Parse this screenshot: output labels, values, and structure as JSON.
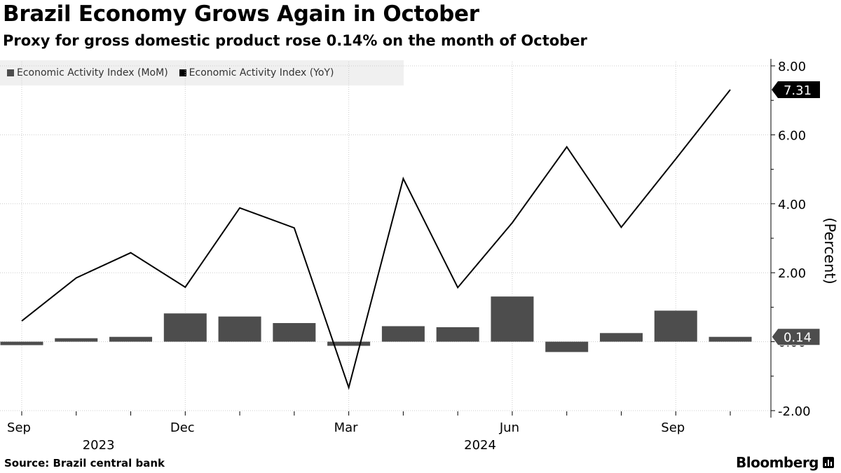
{
  "header": {
    "title": "Brazil Economy Grows Again in October",
    "subtitle": "Proxy for gross domestic product rose 0.14% on the month of October"
  },
  "legend": {
    "mom_label": "Economic Activity Index (MoM)",
    "yoy_label": "Economic Activity Index (YoY)"
  },
  "footer": {
    "source": "Source:  Brazil central bank",
    "brand": "Bloomberg"
  },
  "colors": {
    "bar": "#4d4d4d",
    "line": "#000000",
    "grid": "#cccccc"
  },
  "chart_data": {
    "type": "bar+line",
    "categories": [
      "Sep 2023",
      "Oct 2023",
      "Nov 2023",
      "Dec 2023",
      "Jan 2024",
      "Feb 2024",
      "Mar 2024",
      "Apr 2024",
      "May 2024",
      "Jun 2024",
      "Jul 2024",
      "Aug 2024",
      "Sep 2024",
      "Oct 2024"
    ],
    "series": [
      {
        "name": "Economic Activity Index (MoM)",
        "type": "bar",
        "values": [
          -0.1,
          0.1,
          0.14,
          0.82,
          0.73,
          0.54,
          -0.12,
          0.45,
          0.42,
          1.31,
          -0.3,
          0.25,
          0.9,
          0.14
        ]
      },
      {
        "name": "Economic Activity Index (YoY)",
        "type": "line",
        "values": [
          0.6,
          1.85,
          2.58,
          1.58,
          3.88,
          3.3,
          -1.33,
          4.73,
          1.57,
          3.45,
          5.65,
          3.32,
          5.3,
          7.31
        ]
      }
    ],
    "ylim": [
      -2,
      8
    ],
    "yticks": [
      -2,
      0,
      2,
      4,
      6,
      8
    ],
    "ytick_labels": [
      "-2.00",
      "0.00",
      "2.00",
      "4.00",
      "6.00",
      "8.00"
    ],
    "ylabel": "(Percent)",
    "xticks": [
      {
        "index": 0,
        "label": "Sep"
      },
      {
        "index": 3,
        "label": "Dec"
      },
      {
        "index": 6,
        "label": "Mar"
      },
      {
        "index": 9,
        "label": "Jun"
      },
      {
        "index": 12,
        "label": "Sep"
      }
    ],
    "year_labels": [
      {
        "center": 1.5,
        "label": "2023"
      },
      {
        "center": 8.5,
        "label": "2024"
      }
    ],
    "callouts": [
      {
        "series": 1,
        "index": 13,
        "label": "7.31"
      },
      {
        "series": 0,
        "index": 13,
        "label": "0.14"
      }
    ]
  }
}
